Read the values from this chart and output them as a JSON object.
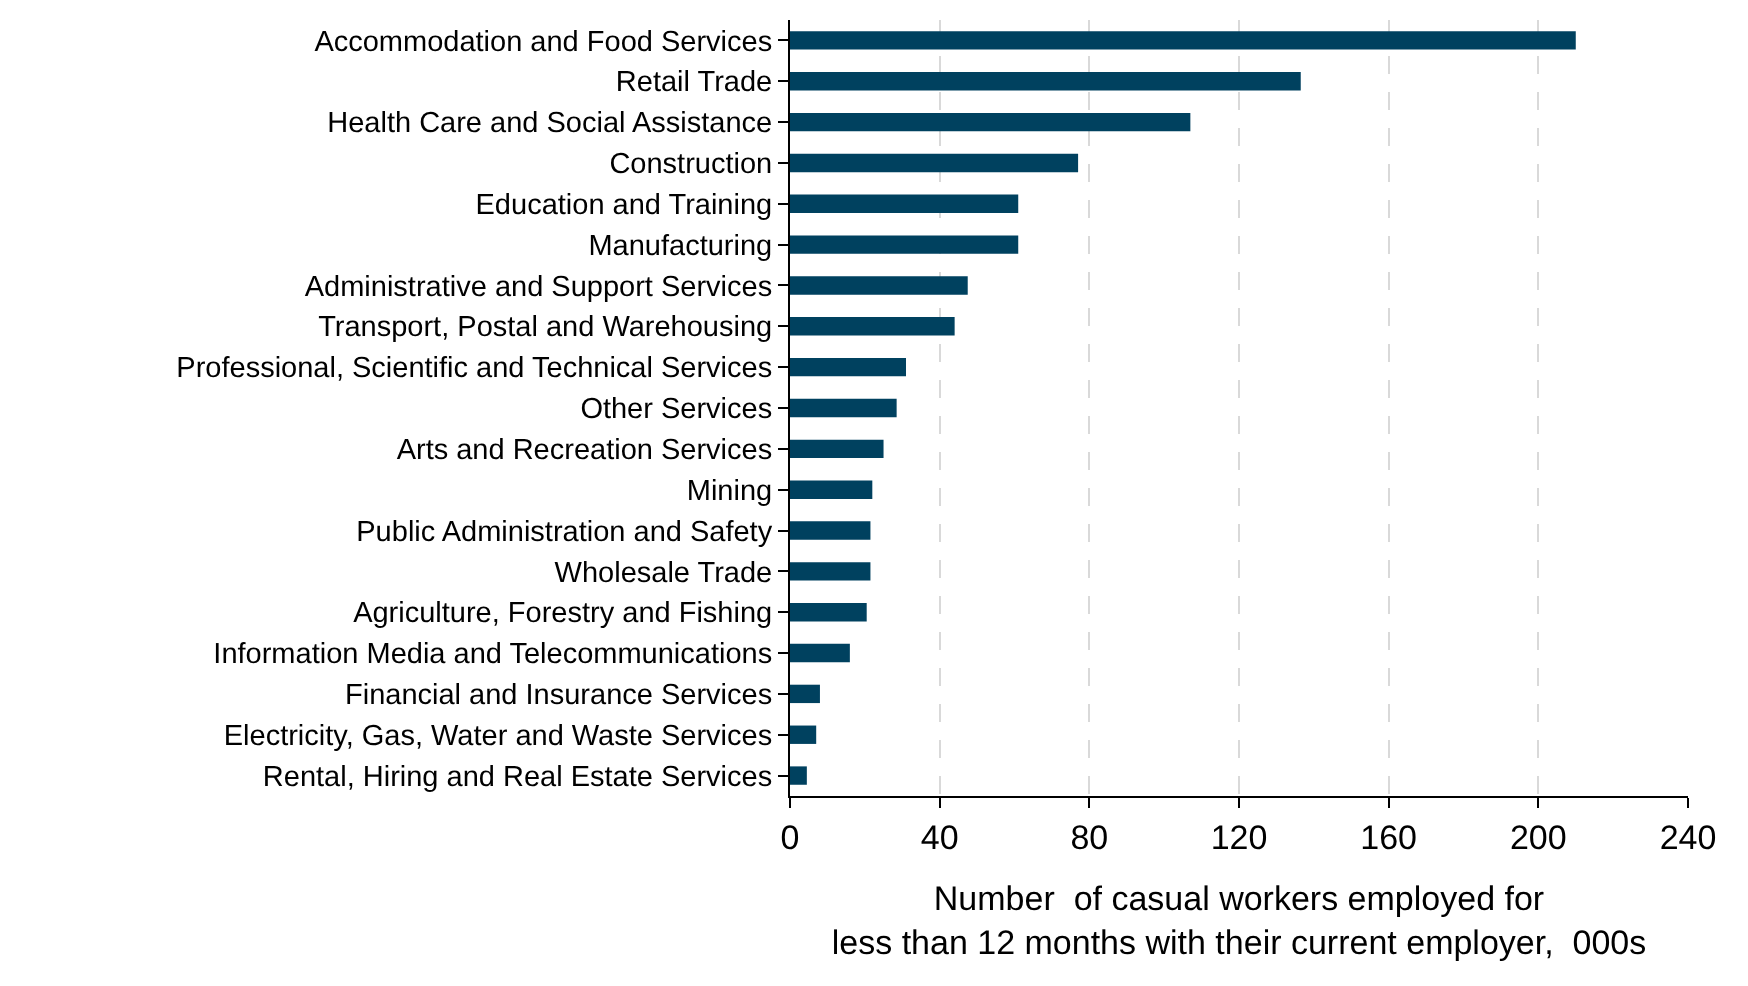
{
  "chart_data": {
    "type": "bar",
    "orientation": "horizontal",
    "categories": [
      "Accommodation and Food Services",
      "Retail Trade",
      "Health Care and Social Assistance",
      "Construction",
      "Education and Training",
      "Manufacturing",
      "Administrative and Support Services",
      "Transport, Postal and Warehousing",
      "Professional, Scientific and Technical Services",
      "Other Services",
      "Arts and Recreation Services",
      "Mining",
      "Public Administration and Safety",
      "Wholesale Trade",
      "Agriculture, Forestry and Fishing",
      "Information Media and Telecommunications",
      "Financial and Insurance Services",
      "Electricity, Gas, Water and Waste Services",
      "Rental, Hiring and Real Estate Services"
    ],
    "values": [
      210,
      136.5,
      107,
      77,
      61,
      61,
      47.5,
      44,
      31,
      28.5,
      25,
      22,
      21.5,
      21.5,
      20.5,
      16,
      8,
      7,
      4.5
    ],
    "color": "#00415f",
    "xlim": [
      0,
      240
    ],
    "xticks": [
      0,
      40,
      80,
      120,
      160,
      200,
      240
    ],
    "xlabel": "Number  of casual workers employed for\nless than 12 months with their current employer,  000s",
    "grid": "x"
  }
}
